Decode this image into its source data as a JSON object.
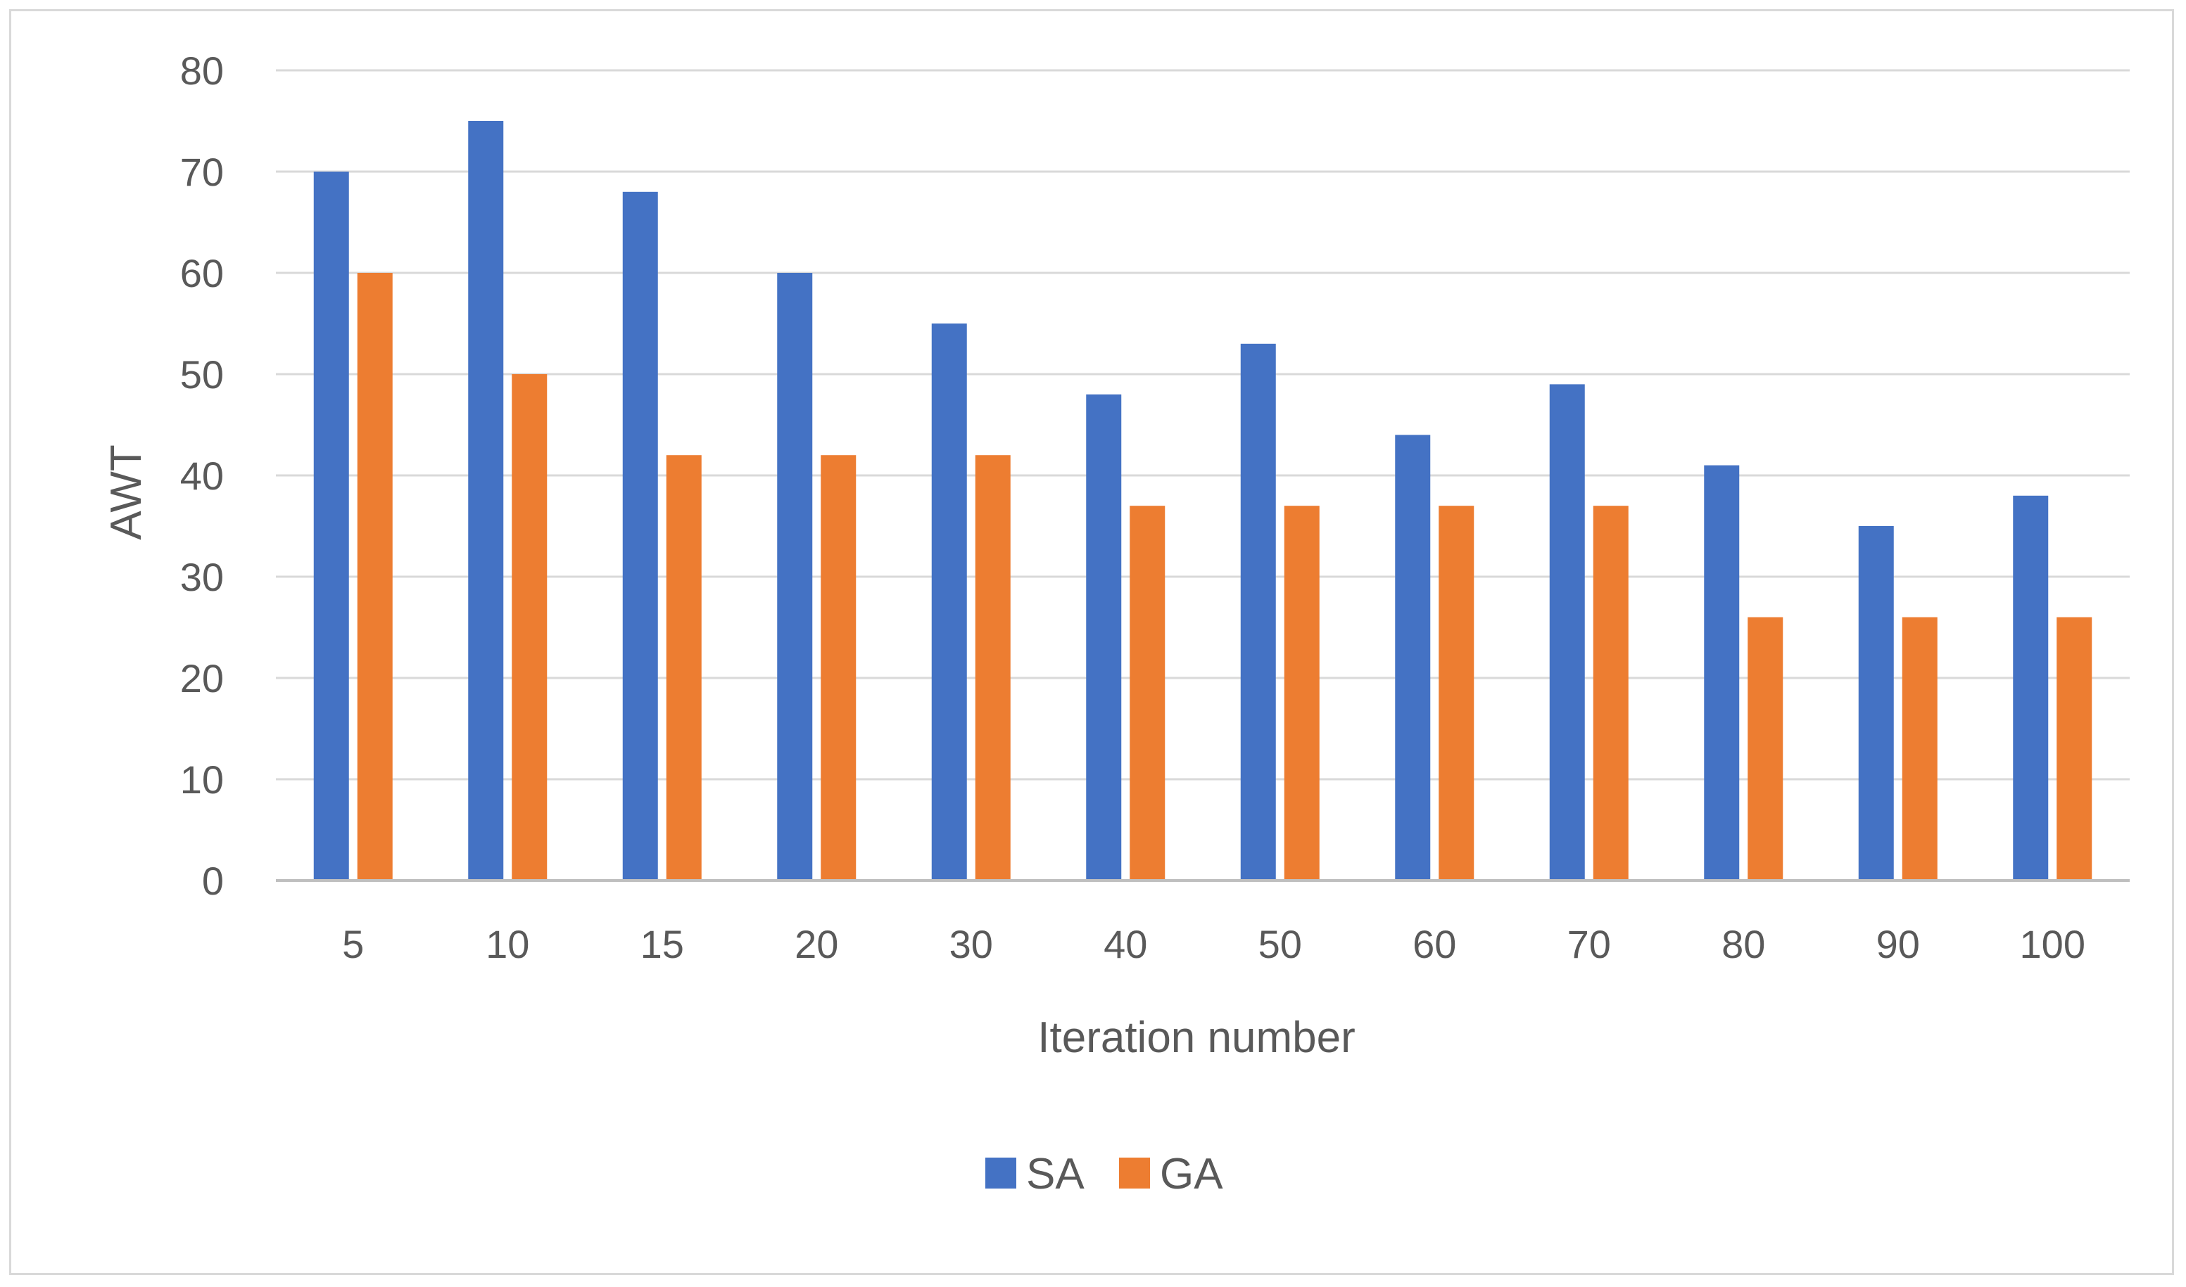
{
  "chart_data": {
    "type": "bar",
    "title": "",
    "xlabel": "Iteration number",
    "ylabel": "AWT",
    "ylim": [
      0,
      80
    ],
    "yticks": [
      0,
      10,
      20,
      30,
      40,
      50,
      60,
      70,
      80
    ],
    "categories": [
      "5",
      "10",
      "15",
      "20",
      "30",
      "40",
      "50",
      "60",
      "70",
      "80",
      "90",
      "100"
    ],
    "series": [
      {
        "name": "SA",
        "color": "#4472c4",
        "values": [
          70,
          75,
          68,
          60,
          55,
          48,
          53,
          44,
          49,
          41,
          35,
          38
        ]
      },
      {
        "name": "GA",
        "color": "#ed7d31",
        "values": [
          60,
          50,
          42,
          42,
          42,
          37,
          37,
          37,
          37,
          26,
          26,
          26
        ]
      }
    ],
    "grid": true,
    "legend": "bottom-center"
  }
}
